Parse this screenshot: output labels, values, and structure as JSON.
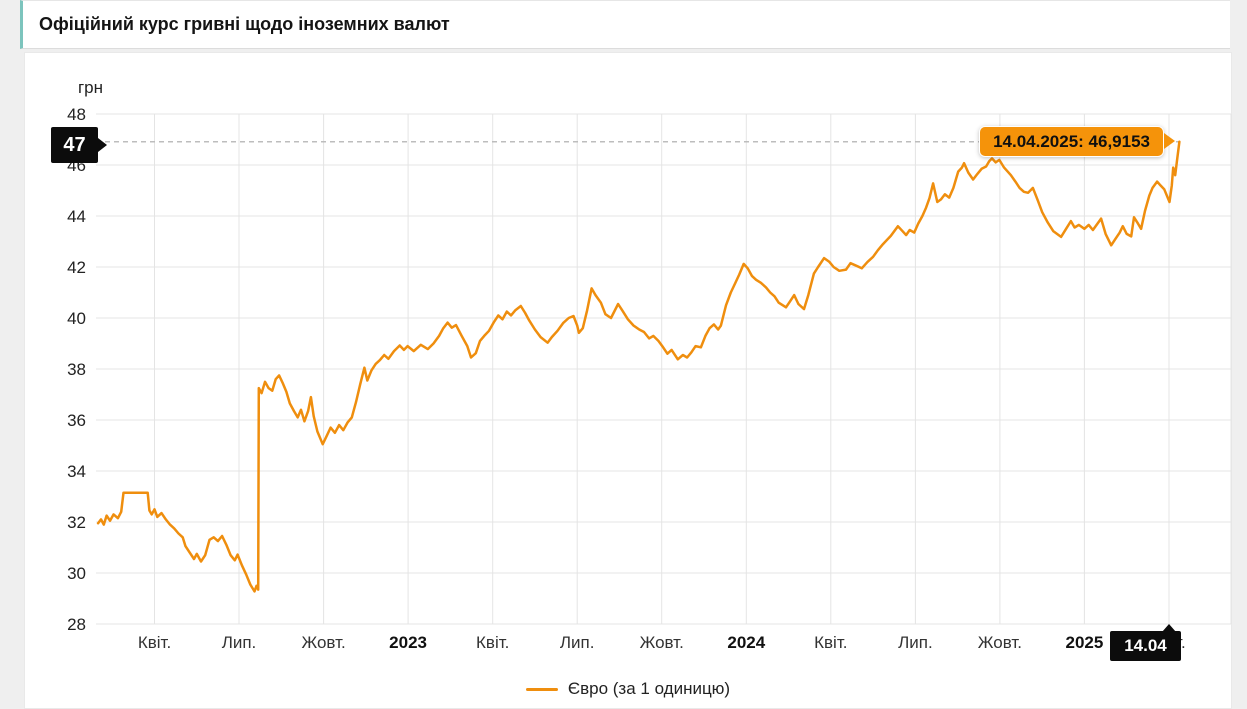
{
  "header": {
    "title": "Офіційний курс гривні щодо іноземних валют"
  },
  "markers": {
    "y_badge": "47",
    "x_badge": "14.04",
    "tooltip": "14.04.2025: 46,9153"
  },
  "legend": {
    "label": "Євро (за 1 одиницю)"
  },
  "colors": {
    "line": "#ef8e0e",
    "tooltip_bg": "#f5930a",
    "badge_bg": "#0c0c0c",
    "grid": "#e4e4e4",
    "dashed": "#bdbdbd",
    "header_accent": "#7cc4bd"
  },
  "chart_data": {
    "type": "line",
    "title": "Офіційний курс гривні щодо іноземних валют",
    "series_name": "Євро (за 1 одиницю)",
    "unit": "грн",
    "ylabel": "грн",
    "xlabel": "",
    "ylim": [
      28,
      48
    ],
    "grid": true,
    "legend_position": "bottom",
    "x_unit": "months since 2022-02-01",
    "y_ticks": [
      28,
      30,
      32,
      34,
      36,
      38,
      40,
      42,
      44,
      46,
      48
    ],
    "x_ticks": [
      {
        "t": 2,
        "label": "Квіт.",
        "bold": false
      },
      {
        "t": 5,
        "label": "Лип.",
        "bold": false
      },
      {
        "t": 8,
        "label": "Жовт.",
        "bold": false
      },
      {
        "t": 11,
        "label": "2023",
        "bold": true
      },
      {
        "t": 14,
        "label": "Квіт.",
        "bold": false
      },
      {
        "t": 17,
        "label": "Лип.",
        "bold": false
      },
      {
        "t": 20,
        "label": "Жовт.",
        "bold": false
      },
      {
        "t": 23,
        "label": "2024",
        "bold": true
      },
      {
        "t": 26,
        "label": "Квіт.",
        "bold": false
      },
      {
        "t": 29,
        "label": "Лип.",
        "bold": false
      },
      {
        "t": 32,
        "label": "Жовт.",
        "bold": false
      },
      {
        "t": 35,
        "label": "2025",
        "bold": true
      },
      {
        "t": 38,
        "label": "Квіт.",
        "bold": false
      }
    ],
    "highlight": {
      "date": "14.04.2025",
      "value": 46.9153,
      "y_axis_badge": 47,
      "x_axis_badge": "14.04"
    },
    "points": [
      [
        0,
        31.95
      ],
      [
        0.1,
        32.1
      ],
      [
        0.2,
        31.9
      ],
      [
        0.3,
        32.25
      ],
      [
        0.42,
        32.05
      ],
      [
        0.55,
        32.3
      ],
      [
        0.7,
        32.15
      ],
      [
        0.82,
        32.4
      ],
      [
        0.9,
        33.15
      ],
      [
        1.76,
        33.15
      ],
      [
        1.82,
        32.45
      ],
      [
        1.9,
        32.3
      ],
      [
        2.0,
        32.5
      ],
      [
        2.1,
        32.2
      ],
      [
        2.25,
        32.35
      ],
      [
        2.4,
        32.1
      ],
      [
        2.55,
        31.9
      ],
      [
        2.7,
        31.75
      ],
      [
        2.85,
        31.55
      ],
      [
        3.0,
        31.4
      ],
      [
        3.1,
        31.05
      ],
      [
        3.25,
        30.8
      ],
      [
        3.4,
        30.55
      ],
      [
        3.5,
        30.75
      ],
      [
        3.65,
        30.45
      ],
      [
        3.8,
        30.7
      ],
      [
        3.95,
        31.3
      ],
      [
        4.1,
        31.4
      ],
      [
        4.25,
        31.25
      ],
      [
        4.4,
        31.45
      ],
      [
        4.55,
        31.1
      ],
      [
        4.7,
        30.7
      ],
      [
        4.85,
        30.5
      ],
      [
        4.95,
        30.72
      ],
      [
        5.1,
        30.3
      ],
      [
        5.25,
        29.95
      ],
      [
        5.4,
        29.55
      ],
      [
        5.55,
        29.28
      ],
      [
        5.62,
        29.5
      ],
      [
        5.68,
        29.35
      ],
      [
        5.7,
        37.25
      ],
      [
        5.8,
        37.05
      ],
      [
        5.92,
        37.5
      ],
      [
        6.05,
        37.25
      ],
      [
        6.18,
        37.15
      ],
      [
        6.3,
        37.6
      ],
      [
        6.42,
        37.75
      ],
      [
        6.55,
        37.45
      ],
      [
        6.68,
        37.1
      ],
      [
        6.8,
        36.65
      ],
      [
        6.95,
        36.35
      ],
      [
        7.08,
        36.1
      ],
      [
        7.2,
        36.4
      ],
      [
        7.32,
        35.95
      ],
      [
        7.45,
        36.35
      ],
      [
        7.55,
        36.9
      ],
      [
        7.65,
        36.15
      ],
      [
        7.78,
        35.55
      ],
      [
        7.97,
        35.05
      ],
      [
        8.1,
        35.35
      ],
      [
        8.25,
        35.7
      ],
      [
        8.4,
        35.5
      ],
      [
        8.55,
        35.8
      ],
      [
        8.7,
        35.6
      ],
      [
        8.85,
        35.9
      ],
      [
        9.0,
        36.1
      ],
      [
        9.15,
        36.7
      ],
      [
        9.3,
        37.4
      ],
      [
        9.45,
        38.05
      ],
      [
        9.55,
        37.55
      ],
      [
        9.7,
        37.95
      ],
      [
        9.85,
        38.2
      ],
      [
        10.0,
        38.35
      ],
      [
        10.15,
        38.55
      ],
      [
        10.3,
        38.4
      ],
      [
        10.5,
        38.7
      ],
      [
        10.7,
        38.92
      ],
      [
        10.85,
        38.75
      ],
      [
        10.98,
        38.9
      ],
      [
        11.2,
        38.7
      ],
      [
        11.45,
        38.95
      ],
      [
        11.7,
        38.78
      ],
      [
        11.9,
        39.0
      ],
      [
        12.1,
        39.3
      ],
      [
        12.25,
        39.6
      ],
      [
        12.4,
        39.82
      ],
      [
        12.55,
        39.62
      ],
      [
        12.7,
        39.72
      ],
      [
        12.9,
        39.3
      ],
      [
        13.1,
        38.9
      ],
      [
        13.23,
        38.45
      ],
      [
        13.4,
        38.62
      ],
      [
        13.55,
        39.1
      ],
      [
        13.7,
        39.3
      ],
      [
        13.87,
        39.5
      ],
      [
        14.05,
        39.85
      ],
      [
        14.2,
        40.1
      ],
      [
        14.35,
        39.95
      ],
      [
        14.5,
        40.25
      ],
      [
        14.65,
        40.1
      ],
      [
        14.8,
        40.3
      ],
      [
        15.0,
        40.47
      ],
      [
        15.15,
        40.2
      ],
      [
        15.3,
        39.9
      ],
      [
        15.5,
        39.55
      ],
      [
        15.7,
        39.25
      ],
      [
        15.95,
        39.03
      ],
      [
        16.1,
        39.25
      ],
      [
        16.3,
        39.5
      ],
      [
        16.5,
        39.8
      ],
      [
        16.7,
        40.0
      ],
      [
        16.87,
        40.08
      ],
      [
        17.0,
        39.7
      ],
      [
        17.06,
        39.42
      ],
      [
        17.2,
        39.6
      ],
      [
        17.35,
        40.3
      ],
      [
        17.51,
        41.16
      ],
      [
        17.65,
        40.9
      ],
      [
        17.84,
        40.6
      ],
      [
        18.0,
        40.15
      ],
      [
        18.2,
        40.0
      ],
      [
        18.45,
        40.55
      ],
      [
        18.6,
        40.3
      ],
      [
        18.8,
        39.95
      ],
      [
        19.0,
        39.7
      ],
      [
        19.2,
        39.55
      ],
      [
        19.37,
        39.45
      ],
      [
        19.55,
        39.2
      ],
      [
        19.7,
        39.3
      ],
      [
        19.88,
        39.1
      ],
      [
        20.05,
        38.85
      ],
      [
        20.2,
        38.6
      ],
      [
        20.35,
        38.75
      ],
      [
        20.57,
        38.38
      ],
      [
        20.75,
        38.55
      ],
      [
        20.9,
        38.45
      ],
      [
        21.05,
        38.65
      ],
      [
        21.2,
        38.9
      ],
      [
        21.39,
        38.85
      ],
      [
        21.55,
        39.3
      ],
      [
        21.7,
        39.6
      ],
      [
        21.85,
        39.75
      ],
      [
        22.0,
        39.55
      ],
      [
        22.1,
        39.7
      ],
      [
        22.28,
        40.5
      ],
      [
        22.45,
        41.0
      ],
      [
        22.6,
        41.35
      ],
      [
        22.75,
        41.7
      ],
      [
        22.91,
        42.12
      ],
      [
        23.05,
        41.95
      ],
      [
        23.2,
        41.65
      ],
      [
        23.35,
        41.5
      ],
      [
        23.52,
        41.38
      ],
      [
        23.7,
        41.2
      ],
      [
        23.85,
        41.0
      ],
      [
        24.0,
        40.85
      ],
      [
        24.15,
        40.6
      ],
      [
        24.41,
        40.42
      ],
      [
        24.55,
        40.65
      ],
      [
        24.7,
        40.9
      ],
      [
        24.85,
        40.55
      ],
      [
        25.05,
        40.35
      ],
      [
        25.2,
        40.9
      ],
      [
        25.4,
        41.74
      ],
      [
        25.55,
        42.0
      ],
      [
        25.76,
        42.35
      ],
      [
        25.95,
        42.2
      ],
      [
        26.1,
        42.0
      ],
      [
        26.3,
        41.85
      ],
      [
        26.54,
        41.9
      ],
      [
        26.7,
        42.15
      ],
      [
        26.9,
        42.05
      ],
      [
        27.1,
        41.95
      ],
      [
        27.3,
        42.2
      ],
      [
        27.5,
        42.4
      ],
      [
        27.67,
        42.66
      ],
      [
        27.85,
        42.9
      ],
      [
        28.13,
        43.22
      ],
      [
        28.38,
        43.6
      ],
      [
        28.55,
        43.4
      ],
      [
        28.67,
        43.25
      ],
      [
        28.8,
        43.45
      ],
      [
        28.96,
        43.35
      ],
      [
        29.1,
        43.7
      ],
      [
        29.25,
        44.0
      ],
      [
        29.38,
        44.33
      ],
      [
        29.5,
        44.7
      ],
      [
        29.63,
        45.28
      ],
      [
        29.78,
        44.55
      ],
      [
        29.91,
        44.65
      ],
      [
        30.05,
        44.85
      ],
      [
        30.2,
        44.72
      ],
      [
        30.35,
        45.1
      ],
      [
        30.52,
        45.74
      ],
      [
        30.65,
        45.9
      ],
      [
        30.73,
        46.07
      ],
      [
        30.88,
        45.7
      ],
      [
        31.05,
        45.43
      ],
      [
        31.2,
        45.65
      ],
      [
        31.35,
        45.85
      ],
      [
        31.51,
        45.94
      ],
      [
        31.62,
        46.15
      ],
      [
        31.72,
        46.26
      ],
      [
        31.85,
        46.1
      ],
      [
        31.98,
        46.2
      ],
      [
        32.15,
        45.9
      ],
      [
        32.39,
        45.6
      ],
      [
        32.55,
        45.35
      ],
      [
        32.7,
        45.1
      ],
      [
        32.85,
        44.95
      ],
      [
        33.0,
        44.91
      ],
      [
        33.17,
        45.1
      ],
      [
        33.35,
        44.6
      ],
      [
        33.5,
        44.15
      ],
      [
        33.7,
        43.74
      ],
      [
        33.9,
        43.4
      ],
      [
        34.17,
        43.18
      ],
      [
        34.35,
        43.5
      ],
      [
        34.52,
        43.8
      ],
      [
        34.65,
        43.55
      ],
      [
        34.8,
        43.65
      ],
      [
        35.0,
        43.5
      ],
      [
        35.15,
        43.65
      ],
      [
        35.3,
        43.45
      ],
      [
        35.59,
        43.9
      ],
      [
        35.75,
        43.3
      ],
      [
        35.95,
        42.85
      ],
      [
        36.1,
        43.1
      ],
      [
        36.25,
        43.35
      ],
      [
        36.36,
        43.6
      ],
      [
        36.5,
        43.3
      ],
      [
        36.66,
        43.2
      ],
      [
        36.76,
        43.95
      ],
      [
        36.9,
        43.7
      ],
      [
        37.01,
        43.5
      ],
      [
        37.15,
        44.2
      ],
      [
        37.3,
        44.8
      ],
      [
        37.42,
        45.11
      ],
      [
        37.58,
        45.35
      ],
      [
        37.7,
        45.2
      ],
      [
        37.83,
        45.05
      ],
      [
        38.02,
        44.55
      ],
      [
        38.1,
        45.2
      ],
      [
        38.15,
        45.9
      ],
      [
        38.22,
        45.6
      ],
      [
        38.3,
        46.3
      ],
      [
        38.37,
        46.9153
      ]
    ]
  }
}
